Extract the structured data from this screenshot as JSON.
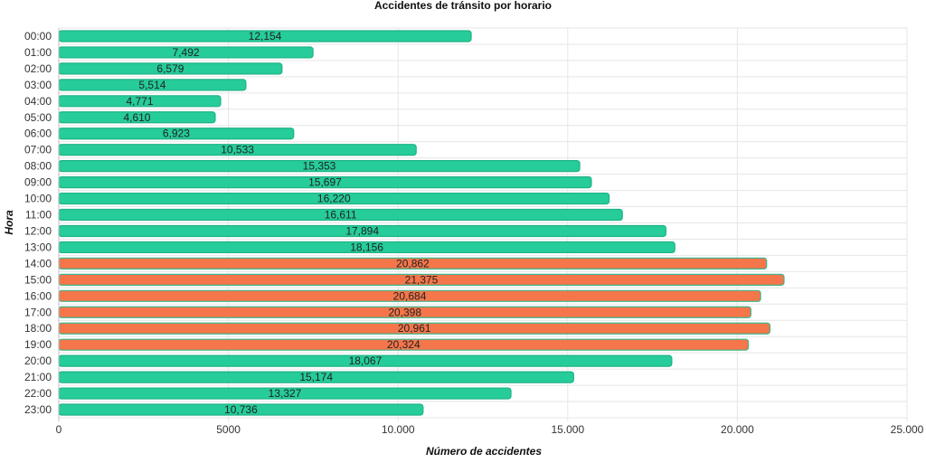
{
  "chart_data": {
    "type": "bar",
    "orientation": "horizontal",
    "title": "Accidentes de tránsito por horario",
    "xlabel": "Número de accidentes",
    "ylabel": "Hora",
    "xlim": [
      0,
      25000
    ],
    "x_ticks": [
      0,
      5000,
      10000,
      15000,
      20000,
      25000
    ],
    "x_tick_labels": [
      "0",
      "5000",
      "10.000",
      "15.000",
      "20.000",
      "25.000"
    ],
    "grid": true,
    "colors": {
      "normal": "#26cc9a",
      "peak": "#f5764a",
      "normal_border": "#1fb386",
      "peak_border": "#3fb68c"
    },
    "categories": [
      "00:00",
      "01:00",
      "02:00",
      "03:00",
      "04:00",
      "05:00",
      "06:00",
      "07:00",
      "08:00",
      "09:00",
      "10:00",
      "11:00",
      "12:00",
      "13:00",
      "14:00",
      "15:00",
      "16:00",
      "17:00",
      "18:00",
      "19:00",
      "20:00",
      "21:00",
      "22:00",
      "23:00"
    ],
    "values": [
      12154,
      7492,
      6579,
      5514,
      4771,
      4610,
      6923,
      10533,
      15353,
      15697,
      16220,
      16611,
      17894,
      18156,
      20862,
      21375,
      20684,
      20398,
      20961,
      20324,
      18067,
      15174,
      13327,
      10736
    ],
    "value_labels": [
      "12,154",
      "7,492",
      "6,579",
      "5,514",
      "4,771",
      "4,610",
      "6,923",
      "10,533",
      "15,353",
      "15,697",
      "16,220",
      "16,611",
      "17,894",
      "18,156",
      "20,862",
      "21,375",
      "20,684",
      "20,398",
      "20,961",
      "20,324",
      "18,067",
      "15,174",
      "13,327",
      "10,736"
    ],
    "highlighted": [
      false,
      false,
      false,
      false,
      false,
      false,
      false,
      false,
      false,
      false,
      false,
      false,
      false,
      false,
      true,
      true,
      true,
      true,
      true,
      true,
      false,
      false,
      false,
      false
    ]
  }
}
